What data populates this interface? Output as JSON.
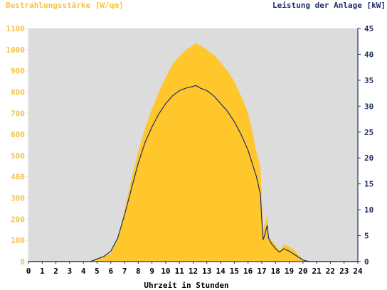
{
  "chart_data": {
    "type": "area",
    "left_axis_label": "Bestrahlungsstärke [W/qm]",
    "right_axis_label": "Leistung der Anlage [kW]",
    "xlabel": "Uhrzeit in Stunden",
    "xlim": [
      0,
      24
    ],
    "ylim_left": [
      0,
      1100
    ],
    "ylim_right": [
      0,
      45
    ],
    "x_ticks": [
      "0",
      "1",
      "2",
      "3",
      "4",
      "5",
      "6",
      "7",
      "8",
      "9",
      "10",
      "11",
      "12",
      "13",
      "14",
      "15",
      "16",
      "17",
      "18",
      "19",
      "20",
      "21",
      "22",
      "23",
      "24"
    ],
    "y_left_ticks": [
      "0",
      "100",
      "200",
      "300",
      "400",
      "500",
      "600",
      "700",
      "800",
      "900",
      "1000",
      "1100"
    ],
    "y_right_ticks": [
      "0",
      "5",
      "10",
      "15",
      "20",
      "25",
      "30",
      "35",
      "40",
      "45"
    ],
    "grid": false,
    "colors": {
      "irradiance": "#ffc72c",
      "power": "#1f2f6b",
      "plot_background": "#dcdcdc",
      "left_text": "#f6c343",
      "right_text": "#1f2f6b"
    },
    "series": [
      {
        "name": "Bestrahlungsstärke [W/qm]",
        "axis": "left",
        "style": "area",
        "x": [
          0,
          4.5,
          5.0,
          5.5,
          6.0,
          6.5,
          7.0,
          7.5,
          8.0,
          8.5,
          9.0,
          9.5,
          10.0,
          10.5,
          11.0,
          11.5,
          12.0,
          12.2,
          12.5,
          13.0,
          13.5,
          14.0,
          14.5,
          15.0,
          15.5,
          16.0,
          16.3,
          16.6,
          16.9,
          17.0,
          17.1,
          17.2,
          17.4,
          17.5,
          17.7,
          18.0,
          18.3,
          18.6,
          19.0,
          19.3,
          19.7,
          20.0,
          20.3,
          20.5,
          24
        ],
        "y": [
          0,
          0,
          15,
          25,
          40,
          110,
          240,
          390,
          520,
          630,
          720,
          800,
          870,
          930,
          970,
          1000,
          1020,
          1030,
          1020,
          1000,
          975,
          940,
          900,
          850,
          780,
          700,
          620,
          520,
          450,
          300,
          150,
          170,
          220,
          120,
          100,
          80,
          50,
          80,
          70,
          60,
          30,
          10,
          3,
          0,
          0
        ]
      },
      {
        "name": "Leistung der Anlage [kW]",
        "axis": "right",
        "style": "line",
        "x": [
          0,
          4.5,
          5.0,
          5.5,
          6.0,
          6.5,
          7.0,
          7.5,
          8.0,
          8.5,
          9.0,
          9.5,
          10.0,
          10.5,
          11.0,
          11.5,
          12.0,
          12.2,
          12.5,
          13.0,
          13.5,
          14.0,
          14.5,
          15.0,
          15.5,
          16.0,
          16.3,
          16.6,
          16.9,
          17.0,
          17.1,
          17.2,
          17.4,
          17.5,
          17.7,
          18.0,
          18.3,
          18.6,
          19.0,
          19.3,
          19.7,
          20.0,
          20.3,
          20.5,
          24
        ],
        "y": [
          0,
          0,
          0.5,
          1.0,
          2.0,
          4.5,
          9.0,
          14.0,
          19.0,
          23.0,
          26.0,
          28.5,
          30.5,
          32.0,
          33.0,
          33.5,
          33.8,
          34.0,
          33.5,
          33.0,
          32.0,
          30.5,
          29.0,
          27.0,
          24.5,
          21.5,
          19.0,
          16.5,
          13.0,
          8.0,
          4.2,
          5.0,
          7.0,
          4.5,
          3.5,
          2.5,
          1.8,
          2.5,
          2.0,
          1.5,
          0.8,
          0.3,
          0.1,
          0,
          0
        ]
      }
    ]
  }
}
